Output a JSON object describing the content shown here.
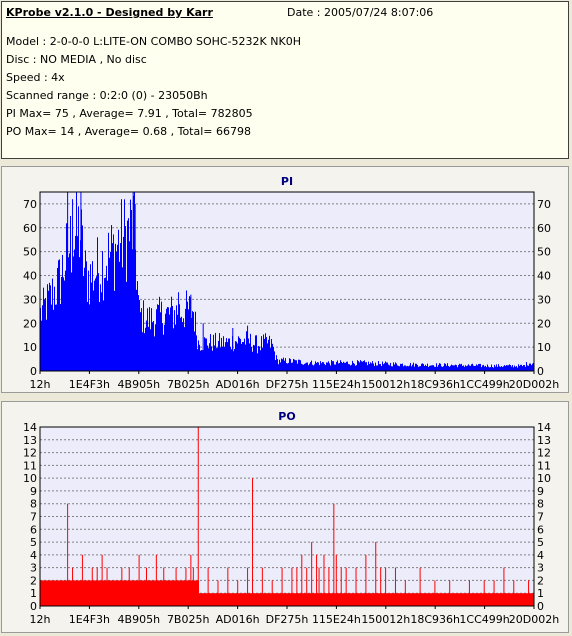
{
  "header": {
    "title": "KProbe v2.1.0 - Designed by Karr",
    "date": "Date : 2005/07/24 8:07:06",
    "lines": [
      "Model : 2-0-0-0 L:LITE-ON COMBO SOHC-5232K NK0H",
      "Disc : NO MEDIA , No disc",
      "Speed : 4x",
      "Scanned range : 0:2:0 (0) - 23050Bh",
      "PI Max= 75 , Average= 7.91 , Total= 782805",
      "PO Max= 14 , Average= 0.68 , Total= 66798"
    ]
  },
  "colors": {
    "bar": "#0000ff",
    "po_bar": "#ff0000",
    "plot_bg": "#ececfb",
    "grid": "#808080"
  },
  "chart_data": [
    {
      "type": "area",
      "title": "PI",
      "x_tick_labels": [
        "12h",
        "1E4F3h",
        "4B905h",
        "7B025h",
        "AD016h",
        "DF275h",
        "115E24h",
        "150012h",
        "18C936h",
        "1CC499h",
        "20D002h"
      ],
      "ylim": [
        0,
        75
      ],
      "yticks": [
        0,
        10,
        20,
        30,
        40,
        50,
        60,
        70
      ],
      "grid": true,
      "profile": [
        [
          0.0,
          28
        ],
        [
          0.01,
          32
        ],
        [
          0.02,
          36
        ],
        [
          0.03,
          40
        ],
        [
          0.04,
          45
        ],
        [
          0.05,
          54
        ],
        [
          0.06,
          62
        ],
        [
          0.07,
          66
        ],
        [
          0.08,
          70
        ],
        [
          0.09,
          48
        ],
        [
          0.1,
          46
        ],
        [
          0.115,
          50
        ],
        [
          0.13,
          54
        ],
        [
          0.145,
          58
        ],
        [
          0.16,
          63
        ],
        [
          0.175,
          67
        ],
        [
          0.19,
          72
        ],
        [
          0.2,
          28
        ],
        [
          0.22,
          25
        ],
        [
          0.24,
          27
        ],
        [
          0.26,
          28
        ],
        [
          0.28,
          29
        ],
        [
          0.3,
          30
        ],
        [
          0.31,
          30
        ],
        [
          0.32,
          14
        ],
        [
          0.35,
          14
        ],
        [
          0.38,
          14
        ],
        [
          0.4,
          15
        ],
        [
          0.41,
          15
        ],
        [
          0.42,
          15
        ],
        [
          0.44,
          13
        ],
        [
          0.46,
          14
        ],
        [
          0.47,
          13
        ],
        [
          0.48,
          5
        ],
        [
          0.5,
          5
        ],
        [
          0.55,
          4
        ],
        [
          0.6,
          4
        ],
        [
          0.65,
          4
        ],
        [
          0.7,
          3.5
        ],
        [
          0.75,
          3.2
        ],
        [
          0.8,
          3
        ],
        [
          0.85,
          2.8
        ],
        [
          0.9,
          2.6
        ],
        [
          0.95,
          2.5
        ],
        [
          0.98,
          2.5
        ],
        [
          0.99,
          4
        ],
        [
          1.0,
          4
        ]
      ],
      "spikes": [
        [
          0.055,
          75
        ],
        [
          0.082,
          75
        ],
        [
          0.188,
          75
        ],
        [
          0.065,
          72
        ],
        [
          0.192,
          70
        ],
        [
          0.28,
          33
        ],
        [
          0.42,
          19
        ],
        [
          0.305,
          32
        ],
        [
          0.33,
          20
        ],
        [
          0.39,
          18
        ]
      ]
    },
    {
      "type": "bar",
      "title": "PO",
      "x_tick_labels": [
        "12h",
        "1E4F3h",
        "4B905h",
        "7B025h",
        "AD016h",
        "DF275h",
        "115E24h",
        "150012h",
        "18C936h",
        "1CC499h",
        "20D002h"
      ],
      "ylim": [
        0,
        14
      ],
      "yticks": [
        0,
        1,
        2,
        3,
        4,
        5,
        6,
        7,
        8,
        9,
        10,
        11,
        12,
        13,
        14
      ],
      "grid": true,
      "baseline": [
        [
          0,
          2
        ],
        [
          0.32,
          2
        ],
        [
          0.321,
          1
        ],
        [
          1,
          1
        ]
      ],
      "spikes": [
        [
          0.055,
          8
        ],
        [
          0.065,
          3
        ],
        [
          0.085,
          4
        ],
        [
          0.105,
          3
        ],
        [
          0.115,
          3
        ],
        [
          0.125,
          4
        ],
        [
          0.135,
          3
        ],
        [
          0.165,
          3
        ],
        [
          0.18,
          3
        ],
        [
          0.2,
          4
        ],
        [
          0.215,
          3
        ],
        [
          0.235,
          4
        ],
        [
          0.25,
          3
        ],
        [
          0.275,
          3
        ],
        [
          0.295,
          3
        ],
        [
          0.305,
          4
        ],
        [
          0.31,
          3
        ],
        [
          0.32,
          14
        ],
        [
          0.34,
          3
        ],
        [
          0.36,
          2
        ],
        [
          0.38,
          3
        ],
        [
          0.4,
          2
        ],
        [
          0.42,
          3
        ],
        [
          0.43,
          10
        ],
        [
          0.45,
          3
        ],
        [
          0.47,
          2
        ],
        [
          0.49,
          3
        ],
        [
          0.51,
          3
        ],
        [
          0.52,
          3
        ],
        [
          0.53,
          4
        ],
        [
          0.54,
          3
        ],
        [
          0.55,
          5
        ],
        [
          0.56,
          4
        ],
        [
          0.565,
          3
        ],
        [
          0.575,
          4
        ],
        [
          0.585,
          3
        ],
        [
          0.595,
          8
        ],
        [
          0.6,
          4
        ],
        [
          0.61,
          3
        ],
        [
          0.62,
          3
        ],
        [
          0.64,
          3
        ],
        [
          0.66,
          4
        ],
        [
          0.68,
          5
        ],
        [
          0.69,
          3
        ],
        [
          0.7,
          3
        ],
        [
          0.72,
          3
        ],
        [
          0.74,
          2
        ],
        [
          0.77,
          3
        ],
        [
          0.8,
          2
        ],
        [
          0.83,
          2
        ],
        [
          0.87,
          2
        ],
        [
          0.9,
          2
        ],
        [
          0.92,
          2
        ],
        [
          0.94,
          3
        ],
        [
          0.96,
          2
        ],
        [
          0.99,
          2
        ]
      ]
    }
  ]
}
